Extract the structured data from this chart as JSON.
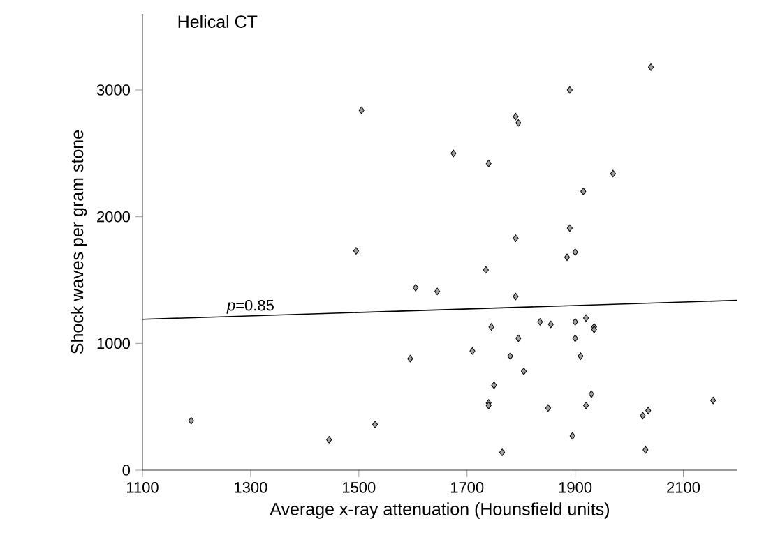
{
  "chart_data": {
    "type": "scatter",
    "title": "Helical CT",
    "xlabel": "Average x-ray attenuation (Hounsfield units)",
    "ylabel": "Shock waves per gram stone",
    "xlim": [
      1100,
      2200
    ],
    "xticks": [
      1100,
      1300,
      1500,
      1700,
      1900,
      2100
    ],
    "ylim": [
      0,
      3600
    ],
    "yticks": [
      0,
      1000,
      2000,
      3000
    ],
    "annotations": [
      {
        "text": "*p*=0.85",
        "x": 1300,
        "y": 1210
      }
    ],
    "series": [
      {
        "color": "#a0a0a0",
        "marker": "diamond",
        "x": [
          1190,
          1445,
          1530,
          1505,
          1495,
          1605,
          1645,
          1595,
          2040,
          1890,
          1790,
          1795,
          1675,
          1740,
          1970,
          1915,
          1790,
          1890,
          1900,
          1885,
          1735,
          1790,
          1745,
          1835,
          1855,
          1900,
          1920,
          1935,
          1935,
          1795,
          1900,
          1710,
          1780,
          1910,
          1805,
          1750,
          1740,
          1740,
          1930,
          1920,
          1850,
          2155,
          2025,
          2035,
          1895,
          1765,
          2030
        ],
        "values": [
          390,
          240,
          360,
          2840,
          1730,
          1440,
          1410,
          880,
          3180,
          3000,
          2790,
          2740,
          2500,
          2420,
          2340,
          2200,
          1830,
          1910,
          1720,
          1680,
          1580,
          1370,
          1130,
          1170,
          1150,
          1170,
          1200,
          1130,
          1110,
          1040,
          1040,
          940,
          900,
          900,
          780,
          670,
          530,
          510,
          600,
          510,
          490,
          550,
          430,
          470,
          270,
          140,
          160
        ]
      },
      {
        "type": "line",
        "color": "#000000",
        "marker": "none",
        "line_style": "solid",
        "x": [
          1100,
          2200
        ],
        "values": [
          1190,
          1340
        ]
      }
    ]
  }
}
